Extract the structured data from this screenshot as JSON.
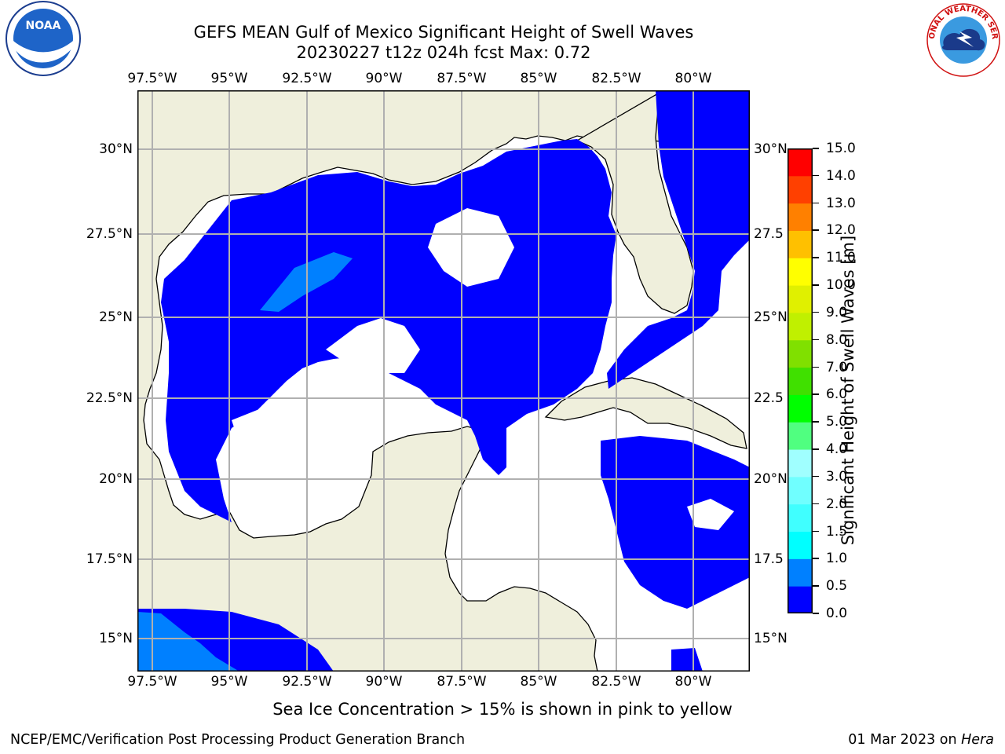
{
  "title": {
    "line1": "GEFS MEAN Gulf of Mexico Significant Height of Swell Waves",
    "line2": "20230227 t12z 024h fcst   Max: 0.72"
  },
  "map": {
    "lon_ticks": [
      "97.5°W",
      "95°W",
      "92.5°W",
      "90°W",
      "87.5°W",
      "85°W",
      "82.5°W",
      "80°W"
    ],
    "lat_ticks": [
      "30°N",
      "27.5°N",
      "25°N",
      "22.5°N",
      "20°N",
      "17.5°N",
      "15°N"
    ],
    "lat_ticks_right": [
      "30°N",
      "27.5",
      "25°N",
      "22.5",
      "20°N",
      "17.5",
      "15°N"
    ],
    "land_color": "#efefdc",
    "ocean_color": "#ffffff",
    "grid": true
  },
  "colorbar": {
    "label": "Significant Height of Swell Waves [m]",
    "levels": [
      "0.0",
      "0.5",
      "1.0",
      "1.5",
      "2.0",
      "3.0",
      "4.0",
      "5.0",
      "6.0",
      "7.0",
      "8.0",
      "9.0",
      "10.0",
      "11.0",
      "12.0",
      "13.0",
      "14.0",
      "15.0"
    ],
    "colors": [
      "#0000ff",
      "#0080ff",
      "#00ffff",
      "#40ffff",
      "#70ffff",
      "#a0ffff",
      "#50ff80",
      "#00ff00",
      "#40e000",
      "#80e000",
      "#c0f000",
      "#e0f000",
      "#ffff00",
      "#ffc000",
      "#ff8000",
      "#ff4000",
      "#ff0000"
    ]
  },
  "note": "Sea Ice Concentration > 15% is shown in pink to yellow",
  "footer": {
    "left": "NCEP/EMC/Verification Post Processing Product Generation Branch",
    "right_date": "01 Mar 2023 on ",
    "right_machine": "Hera"
  },
  "logos": {
    "left": "NOAA",
    "right": "NATIONAL WEATHER SERVICE"
  }
}
